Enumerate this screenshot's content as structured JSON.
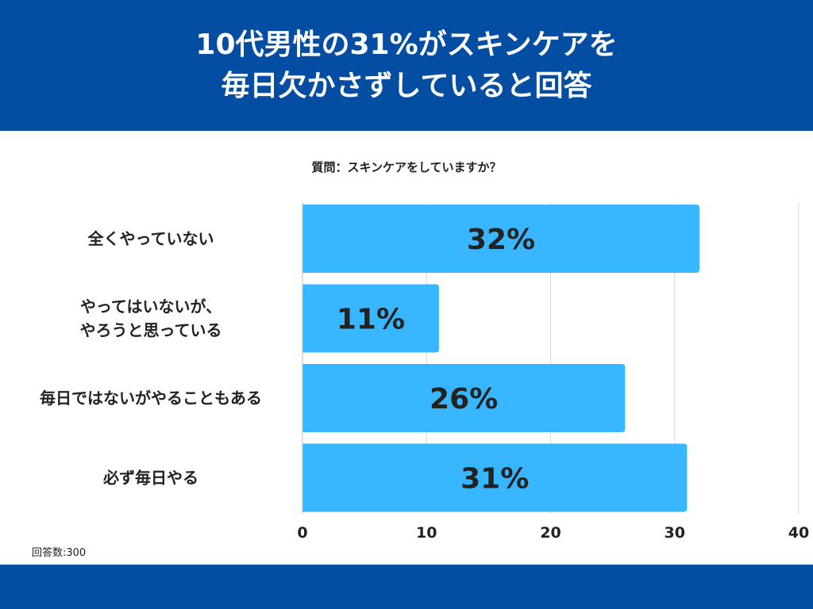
{
  "header": {
    "title_line1": "10代男性の31%がスキンケアを",
    "title_line2": "毎日欠かさずしていると回答"
  },
  "question": "質問：スキンケアをしていますか？",
  "respondents": "回答数:300",
  "colors": {
    "header_bg": "#034ea2",
    "bar": "#38b6ff",
    "grid": "#d9d9d9",
    "text": "#222222"
  },
  "chart_data": {
    "type": "bar",
    "orientation": "horizontal",
    "categories": [
      [
        "全くやっていない"
      ],
      [
        "やってはいないが、",
        "やろうと思っている"
      ],
      [
        "毎日ではないがやることもある"
      ],
      [
        "必ず毎日やる"
      ]
    ],
    "values": [
      32,
      11,
      26,
      31
    ],
    "value_labels": [
      "32%",
      "11%",
      "26%",
      "31%"
    ],
    "xlim": [
      0,
      40
    ],
    "xticks": [
      0,
      10,
      20,
      30,
      40
    ],
    "grid": true
  }
}
